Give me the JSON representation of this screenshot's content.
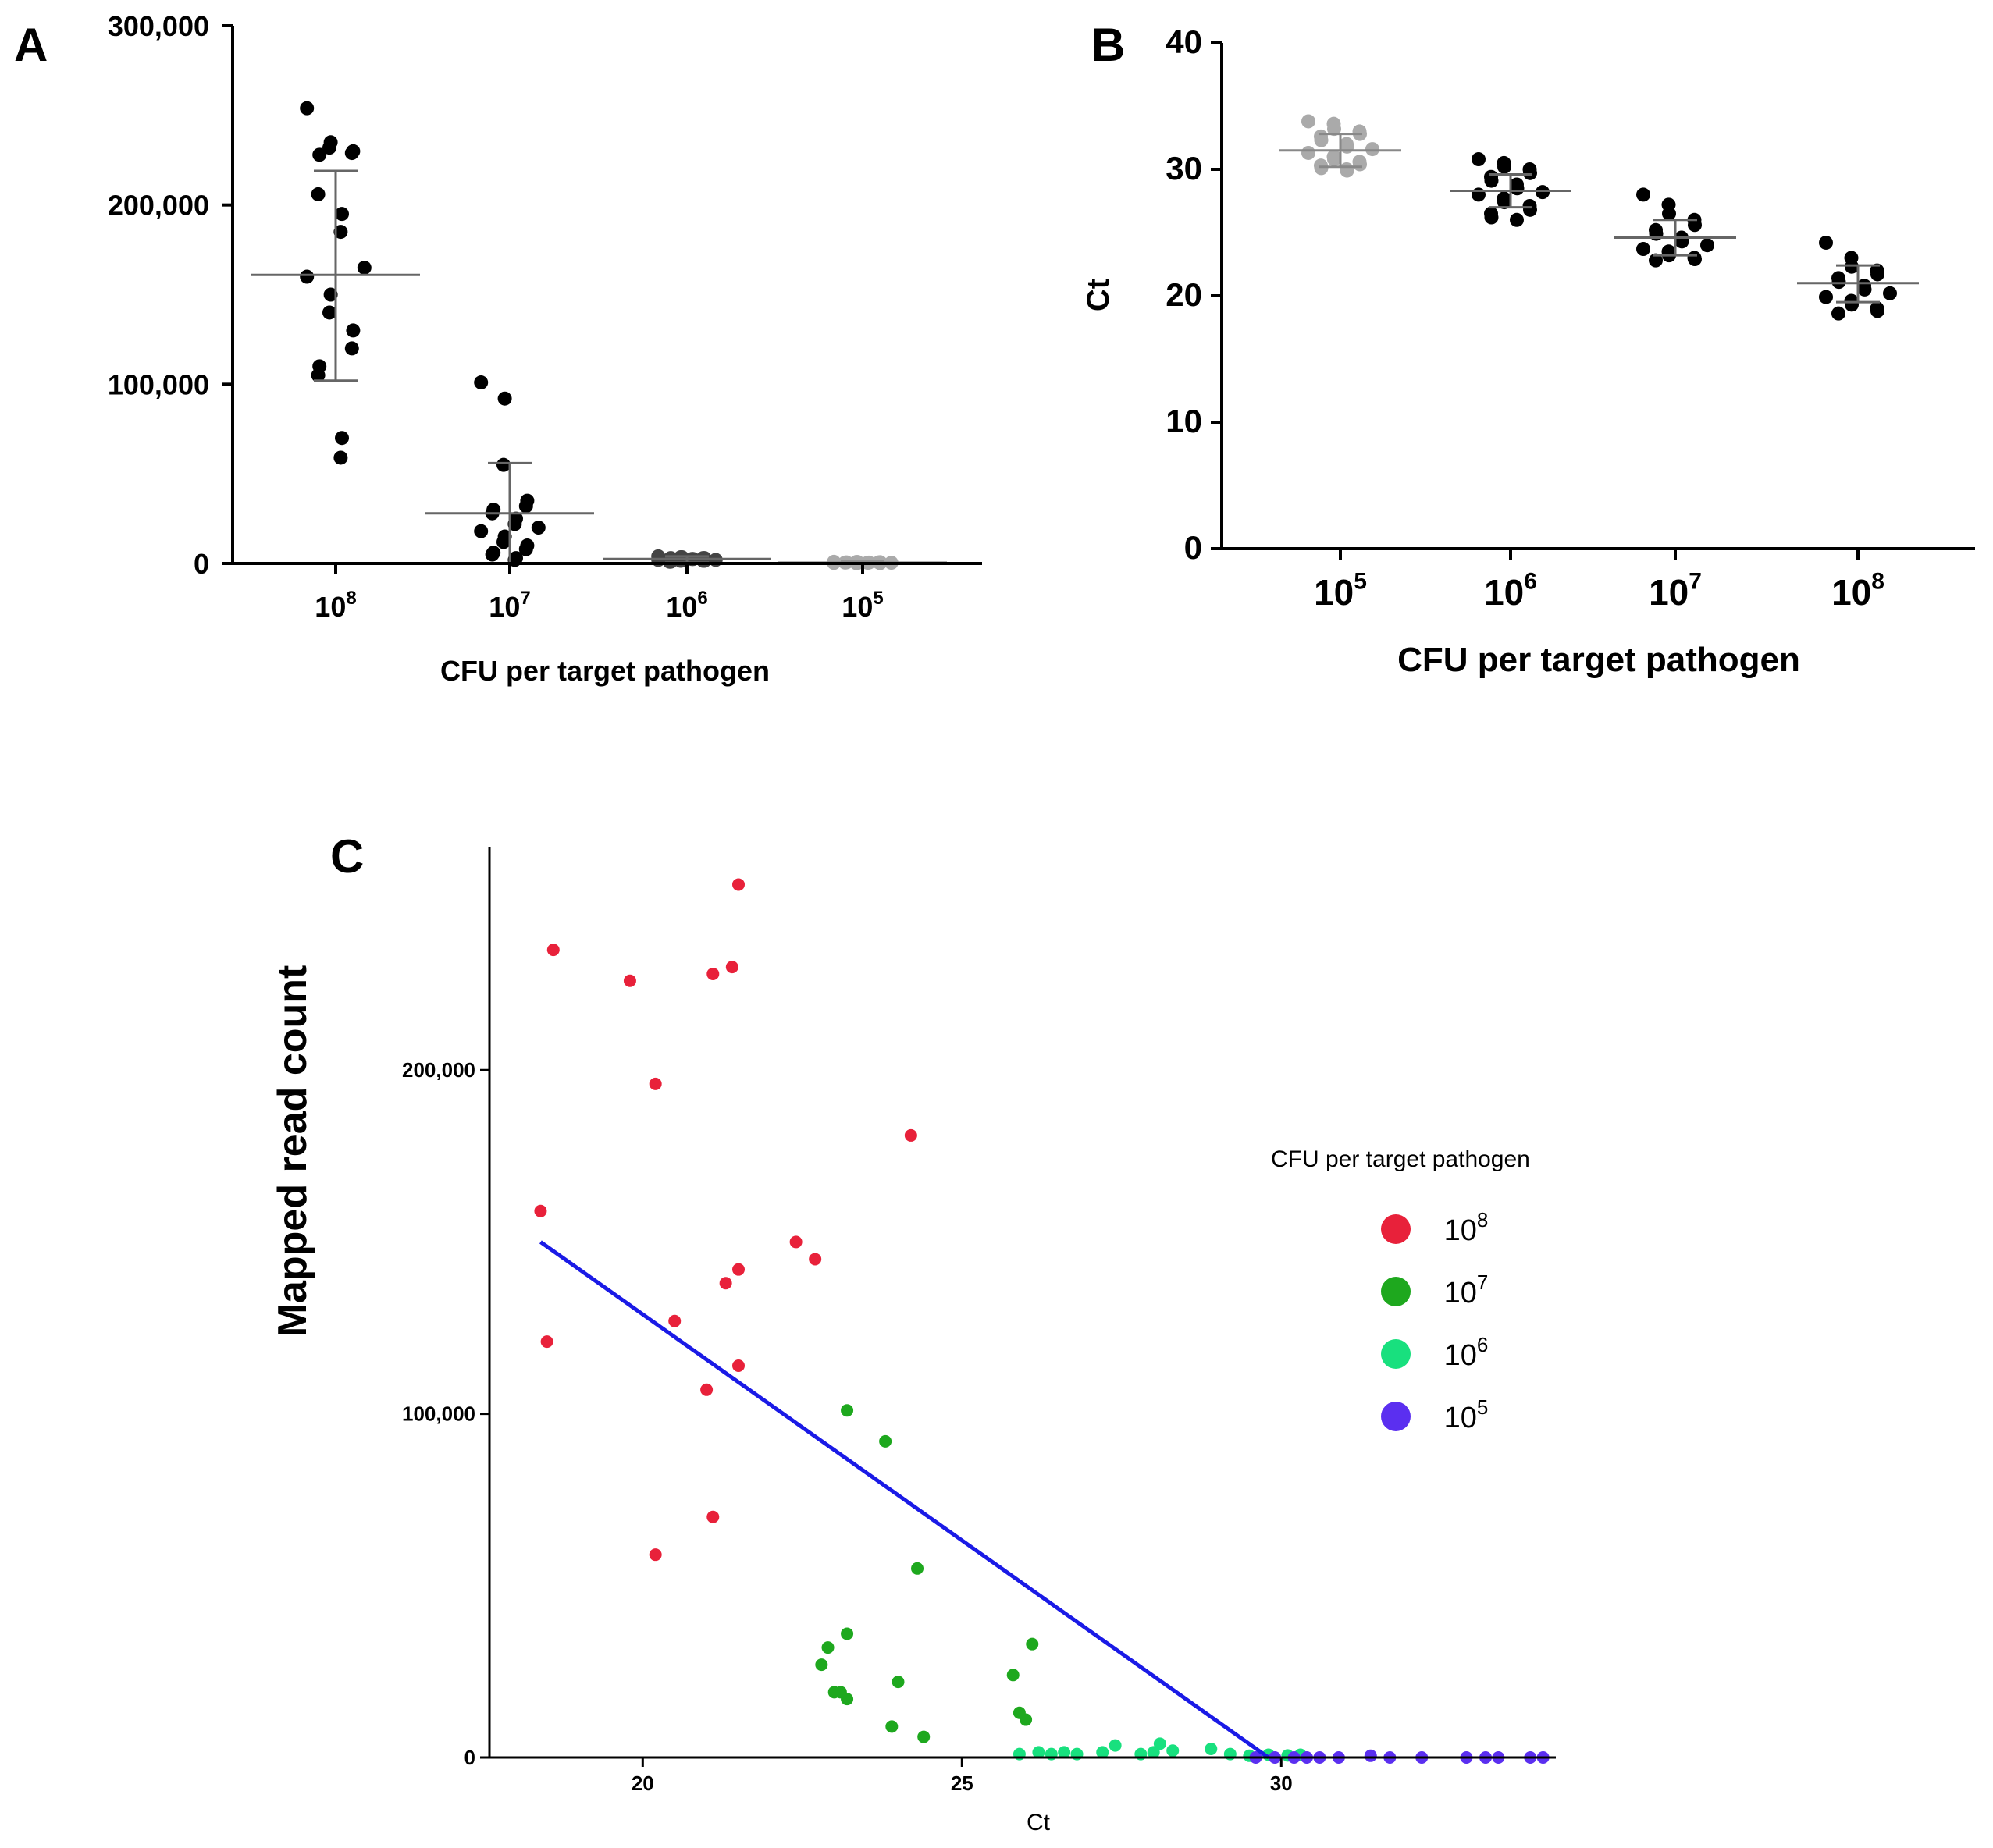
{
  "chart_data": [
    {
      "id": "A",
      "type": "scatter",
      "panel_label": "A",
      "xlabel": "CFU per target pathogen",
      "ylabel": "",
      "categories": [
        {
          "base": "10",
          "exp": "8"
        },
        {
          "base": "10",
          "exp": "7"
        },
        {
          "base": "10",
          "exp": "6"
        },
        {
          "base": "10",
          "exp": "5"
        }
      ],
      "ylim": [
        0,
        300000
      ],
      "yticks": [
        0,
        100000,
        200000,
        300000
      ],
      "ytick_labels": [
        "0",
        "100,000",
        "200,000",
        "300,000"
      ],
      "groups": [
        {
          "color": "#000000",
          "mean": 161000,
          "sd_low": 102000,
          "sd_high": 219000,
          "values": [
            254000,
            235000,
            232000,
            230000,
            229000,
            228000,
            206000,
            195000,
            185000,
            165000,
            160000,
            150000,
            140000,
            130000,
            120000,
            110000,
            105000,
            70000,
            59000
          ]
        },
        {
          "color": "#000000",
          "mean": 28000,
          "sd_low": 0,
          "sd_high": 56000,
          "values": [
            101000,
            92000,
            55000,
            35000,
            32000,
            30000,
            28000,
            25000,
            22000,
            20000,
            18000,
            15000,
            12000,
            10000,
            8000,
            6000,
            5000,
            3000,
            2000
          ]
        },
        {
          "color": "#444444",
          "mean": 2500,
          "sd_low": 500,
          "sd_high": 4000,
          "values": [
            4000,
            3500,
            3500,
            3000,
            3000,
            3000,
            2500,
            2500,
            2500,
            2000,
            2000,
            2000,
            1500,
            1500,
            1500,
            1000,
            1000
          ]
        },
        {
          "color": "#aaaaaa",
          "mean": 500,
          "sd_low": 0,
          "sd_high": 1000,
          "values": [
            900,
            800,
            800,
            700,
            600,
            600,
            500,
            500,
            400,
            400,
            300,
            300,
            200,
            200
          ]
        }
      ]
    },
    {
      "id": "B",
      "type": "scatter",
      "panel_label": "B",
      "xlabel": "CFU per target pathogen",
      "ylabel": "Ct",
      "categories": [
        {
          "base": "10",
          "exp": "5"
        },
        {
          "base": "10",
          "exp": "6"
        },
        {
          "base": "10",
          "exp": "7"
        },
        {
          "base": "10",
          "exp": "8"
        }
      ],
      "ylim": [
        0,
        40
      ],
      "yticks": [
        0,
        10,
        20,
        30,
        40
      ],
      "ytick_labels": [
        "0",
        "10",
        "20",
        "30",
        "40"
      ],
      "groups": [
        {
          "color": "#aaaaaa",
          "mean": 31.5,
          "sd_low": 30.2,
          "sd_high": 32.8,
          "values": [
            33.8,
            33.6,
            33.2,
            33.0,
            32.8,
            32.6,
            32.3,
            32.0,
            31.8,
            31.6,
            31.3,
            31.0,
            30.8,
            30.6,
            30.4,
            30.3,
            30.1,
            30.0,
            29.9
          ]
        },
        {
          "color": "#000000",
          "mean": 28.3,
          "sd_low": 27.0,
          "sd_high": 29.6,
          "values": [
            30.8,
            30.5,
            30.2,
            30.0,
            29.7,
            29.4,
            29.1,
            28.8,
            28.5,
            28.2,
            28.0,
            27.7,
            27.4,
            27.1,
            26.8,
            26.5,
            26.2,
            26.0
          ]
        },
        {
          "color": "#000000",
          "mean": 24.6,
          "sd_low": 23.2,
          "sd_high": 26.0,
          "values": [
            28.0,
            27.2,
            26.5,
            26.0,
            25.6,
            25.2,
            24.9,
            24.6,
            24.3,
            24.0,
            23.7,
            23.5,
            23.2,
            23.0,
            22.9,
            22.8
          ]
        },
        {
          "color": "#000000",
          "mean": 21.0,
          "sd_low": 19.5,
          "sd_high": 22.4,
          "values": [
            24.2,
            23.0,
            22.3,
            22.0,
            21.7,
            21.4,
            21.1,
            20.8,
            20.5,
            20.2,
            19.9,
            19.6,
            19.3,
            19.0,
            18.8,
            18.6
          ]
        }
      ]
    },
    {
      "id": "C",
      "type": "scatter",
      "panel_label": "C",
      "xlabel": "Ct",
      "ylabel": "Mapped read count",
      "xlim": [
        17.6,
        34.3
      ],
      "ylim": [
        0,
        265000
      ],
      "xticks": [
        20,
        25,
        30
      ],
      "xtick_labels": [
        "20",
        "25",
        "30"
      ],
      "yticks": [
        0,
        100000,
        200000
      ],
      "ytick_labels": [
        "0",
        "100,000",
        "200,000"
      ],
      "legend": {
        "title": "CFU per target pathogen",
        "placement": "right"
      },
      "series": [
        {
          "name_base": "10",
          "name_exp": "8",
          "color": "#e8213a",
          "x": [
            21.5,
            18.6,
            19.8,
            21.4,
            21.1,
            20.2,
            24.2,
            18.4,
            22.4,
            22.7,
            21.5,
            21.3,
            20.5,
            18.5,
            21.5,
            21.0,
            21.1,
            20.2
          ],
          "y": [
            254000,
            235000,
            226000,
            230000,
            228000,
            196000,
            181000,
            159000,
            150000,
            145000,
            142000,
            138000,
            127000,
            121000,
            114000,
            107000,
            70000,
            59000
          ]
        },
        {
          "name_base": "10",
          "name_exp": "7",
          "color": "#1ea81e",
          "x": [
            23.2,
            23.8,
            24.3,
            23.2,
            22.9,
            22.8,
            24.0,
            25.8,
            26.1,
            23.0,
            23.1,
            23.2,
            25.9,
            26.0,
            23.9,
            24.4
          ],
          "y": [
            101000,
            92000,
            55000,
            36000,
            32000,
            27000,
            22000,
            24000,
            33000,
            19000,
            19000,
            17000,
            13000,
            11000,
            9000,
            6000
          ]
        },
        {
          "name_base": "10",
          "name_exp": "6",
          "color": "#18e07e",
          "x": [
            25.9,
            26.2,
            26.4,
            26.6,
            26.8,
            27.2,
            27.4,
            27.8,
            28.0,
            28.1,
            28.3,
            28.9,
            29.2,
            29.5,
            29.8,
            30.1,
            30.3
          ],
          "y": [
            1000,
            1500,
            1000,
            1500,
            1000,
            1500,
            3500,
            1000,
            1500,
            4000,
            2000,
            2500,
            1000,
            500,
            800,
            600,
            800
          ]
        },
        {
          "name_base": "10",
          "name_exp": "5",
          "color": "#5b2ff0",
          "x": [
            29.6,
            29.9,
            30.2,
            30.4,
            30.6,
            30.9,
            31.4,
            31.7,
            32.2,
            32.9,
            33.2,
            33.4,
            33.9,
            34.1
          ],
          "y": [
            0,
            0,
            0,
            0,
            0,
            0,
            500,
            0,
            0,
            0,
            0,
            0,
            0,
            0
          ]
        }
      ],
      "regression": {
        "x1": 18.4,
        "y1": 150000,
        "x2": 29.8,
        "y2": 0,
        "color": "#1a1ae6"
      }
    }
  ]
}
